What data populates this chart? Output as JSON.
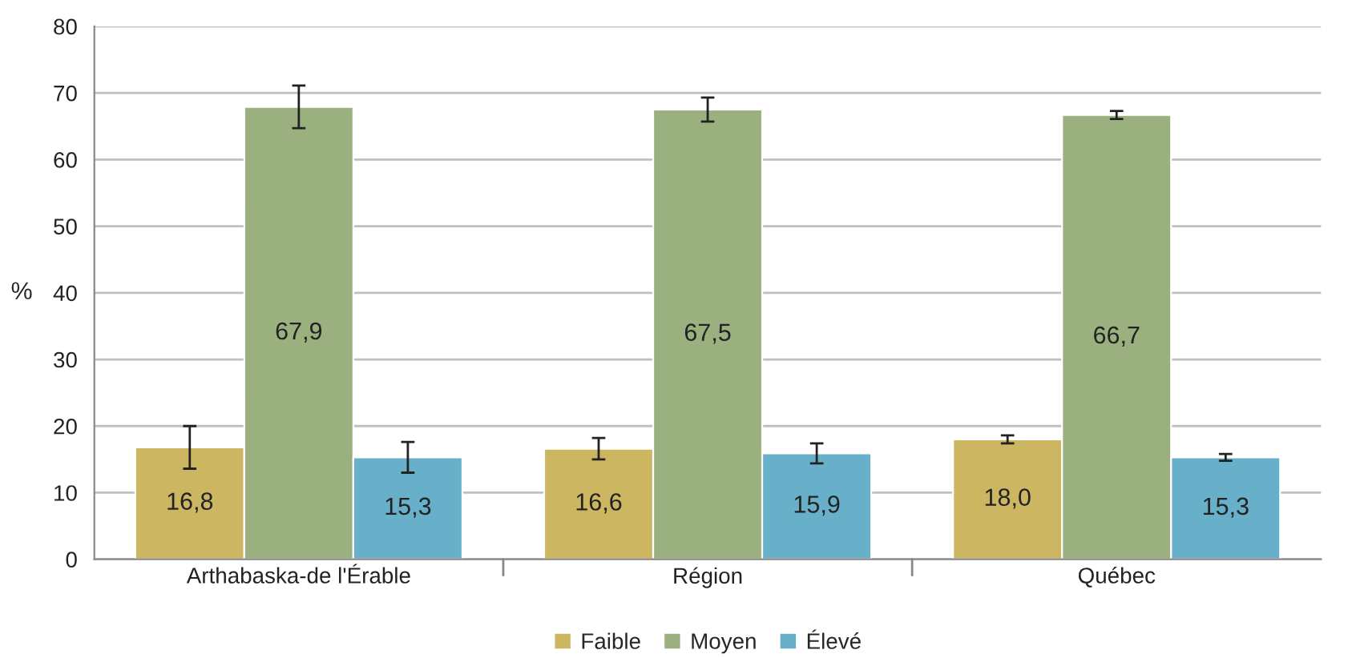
{
  "chart_data": {
    "type": "bar",
    "ylabel": "%",
    "categories": [
      "Arthabaska-de l'Érable",
      "Région",
      "Québec"
    ],
    "series": [
      {
        "name": "Faible",
        "color": "#cdb662",
        "values": [
          16.8,
          16.6,
          18.0
        ],
        "value_labels": [
          "16,8",
          "16,6",
          "18,0"
        ],
        "errors": [
          3.2,
          1.6,
          0.6
        ]
      },
      {
        "name": "Moyen",
        "color": "#9bb07f",
        "values": [
          67.9,
          67.5,
          66.7
        ],
        "value_labels": [
          "67,9",
          "67,5",
          "66,7"
        ],
        "errors": [
          3.2,
          1.8,
          0.6
        ]
      },
      {
        "name": "Élevé",
        "color": "#68afc9",
        "values": [
          15.3,
          15.9,
          15.3
        ],
        "value_labels": [
          "15,3",
          "15,9",
          "15,3"
        ],
        "errors": [
          2.3,
          1.5,
          0.5
        ]
      }
    ],
    "ylim": [
      0,
      80
    ],
    "yticks": [
      0,
      10,
      20,
      30,
      40,
      50,
      60,
      70,
      80
    ],
    "grid": "y",
    "legend": "bottom"
  }
}
